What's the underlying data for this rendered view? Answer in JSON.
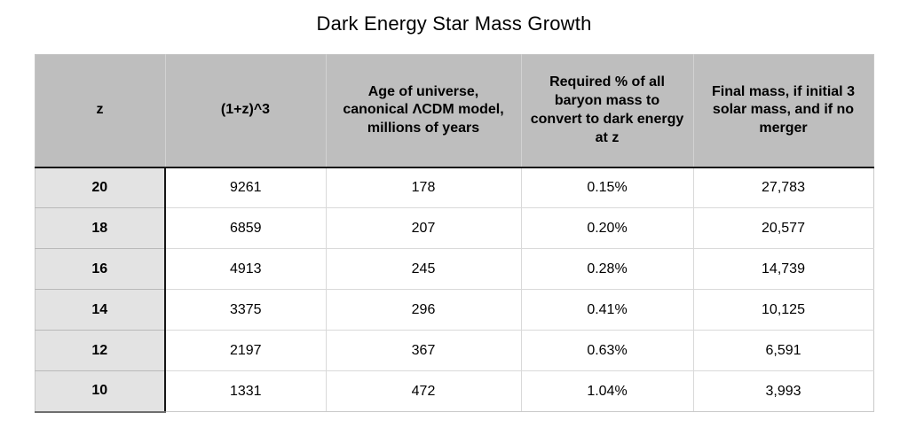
{
  "title": "Dark Energy Star Mass Growth",
  "colors": {
    "header_bg": "#bebebe",
    "row_header_bg": "#e3e3e3",
    "grid_line": "#d9d9d9",
    "strong_border": "#151515",
    "text": "#000000",
    "background": "#ffffff"
  },
  "chart_data": {
    "type": "table",
    "title": "Dark Energy Star Mass Growth",
    "columns": [
      "z",
      "(1+z)^3",
      "Age of universe, canonical ΛCDM model, millions of years",
      "Required % of all baryon mass to convert to dark energy at z",
      "Final mass, if initial 3 solar mass, and if no merger"
    ],
    "rows": [
      [
        "20",
        "9261",
        "178",
        "0.15%",
        "27,783"
      ],
      [
        "18",
        "6859",
        "207",
        "0.20%",
        "20,577"
      ],
      [
        "16",
        "4913",
        "245",
        "0.28%",
        "14,739"
      ],
      [
        "14",
        "3375",
        "296",
        "0.41%",
        "10,125"
      ],
      [
        "12",
        "2197",
        "367",
        "0.63%",
        "6,591"
      ],
      [
        "10",
        "1331",
        "472",
        "1.04%",
        "3,993"
      ]
    ],
    "layout": {
      "title_position": "top-center",
      "row_header_column": "z",
      "grid": true
    }
  }
}
